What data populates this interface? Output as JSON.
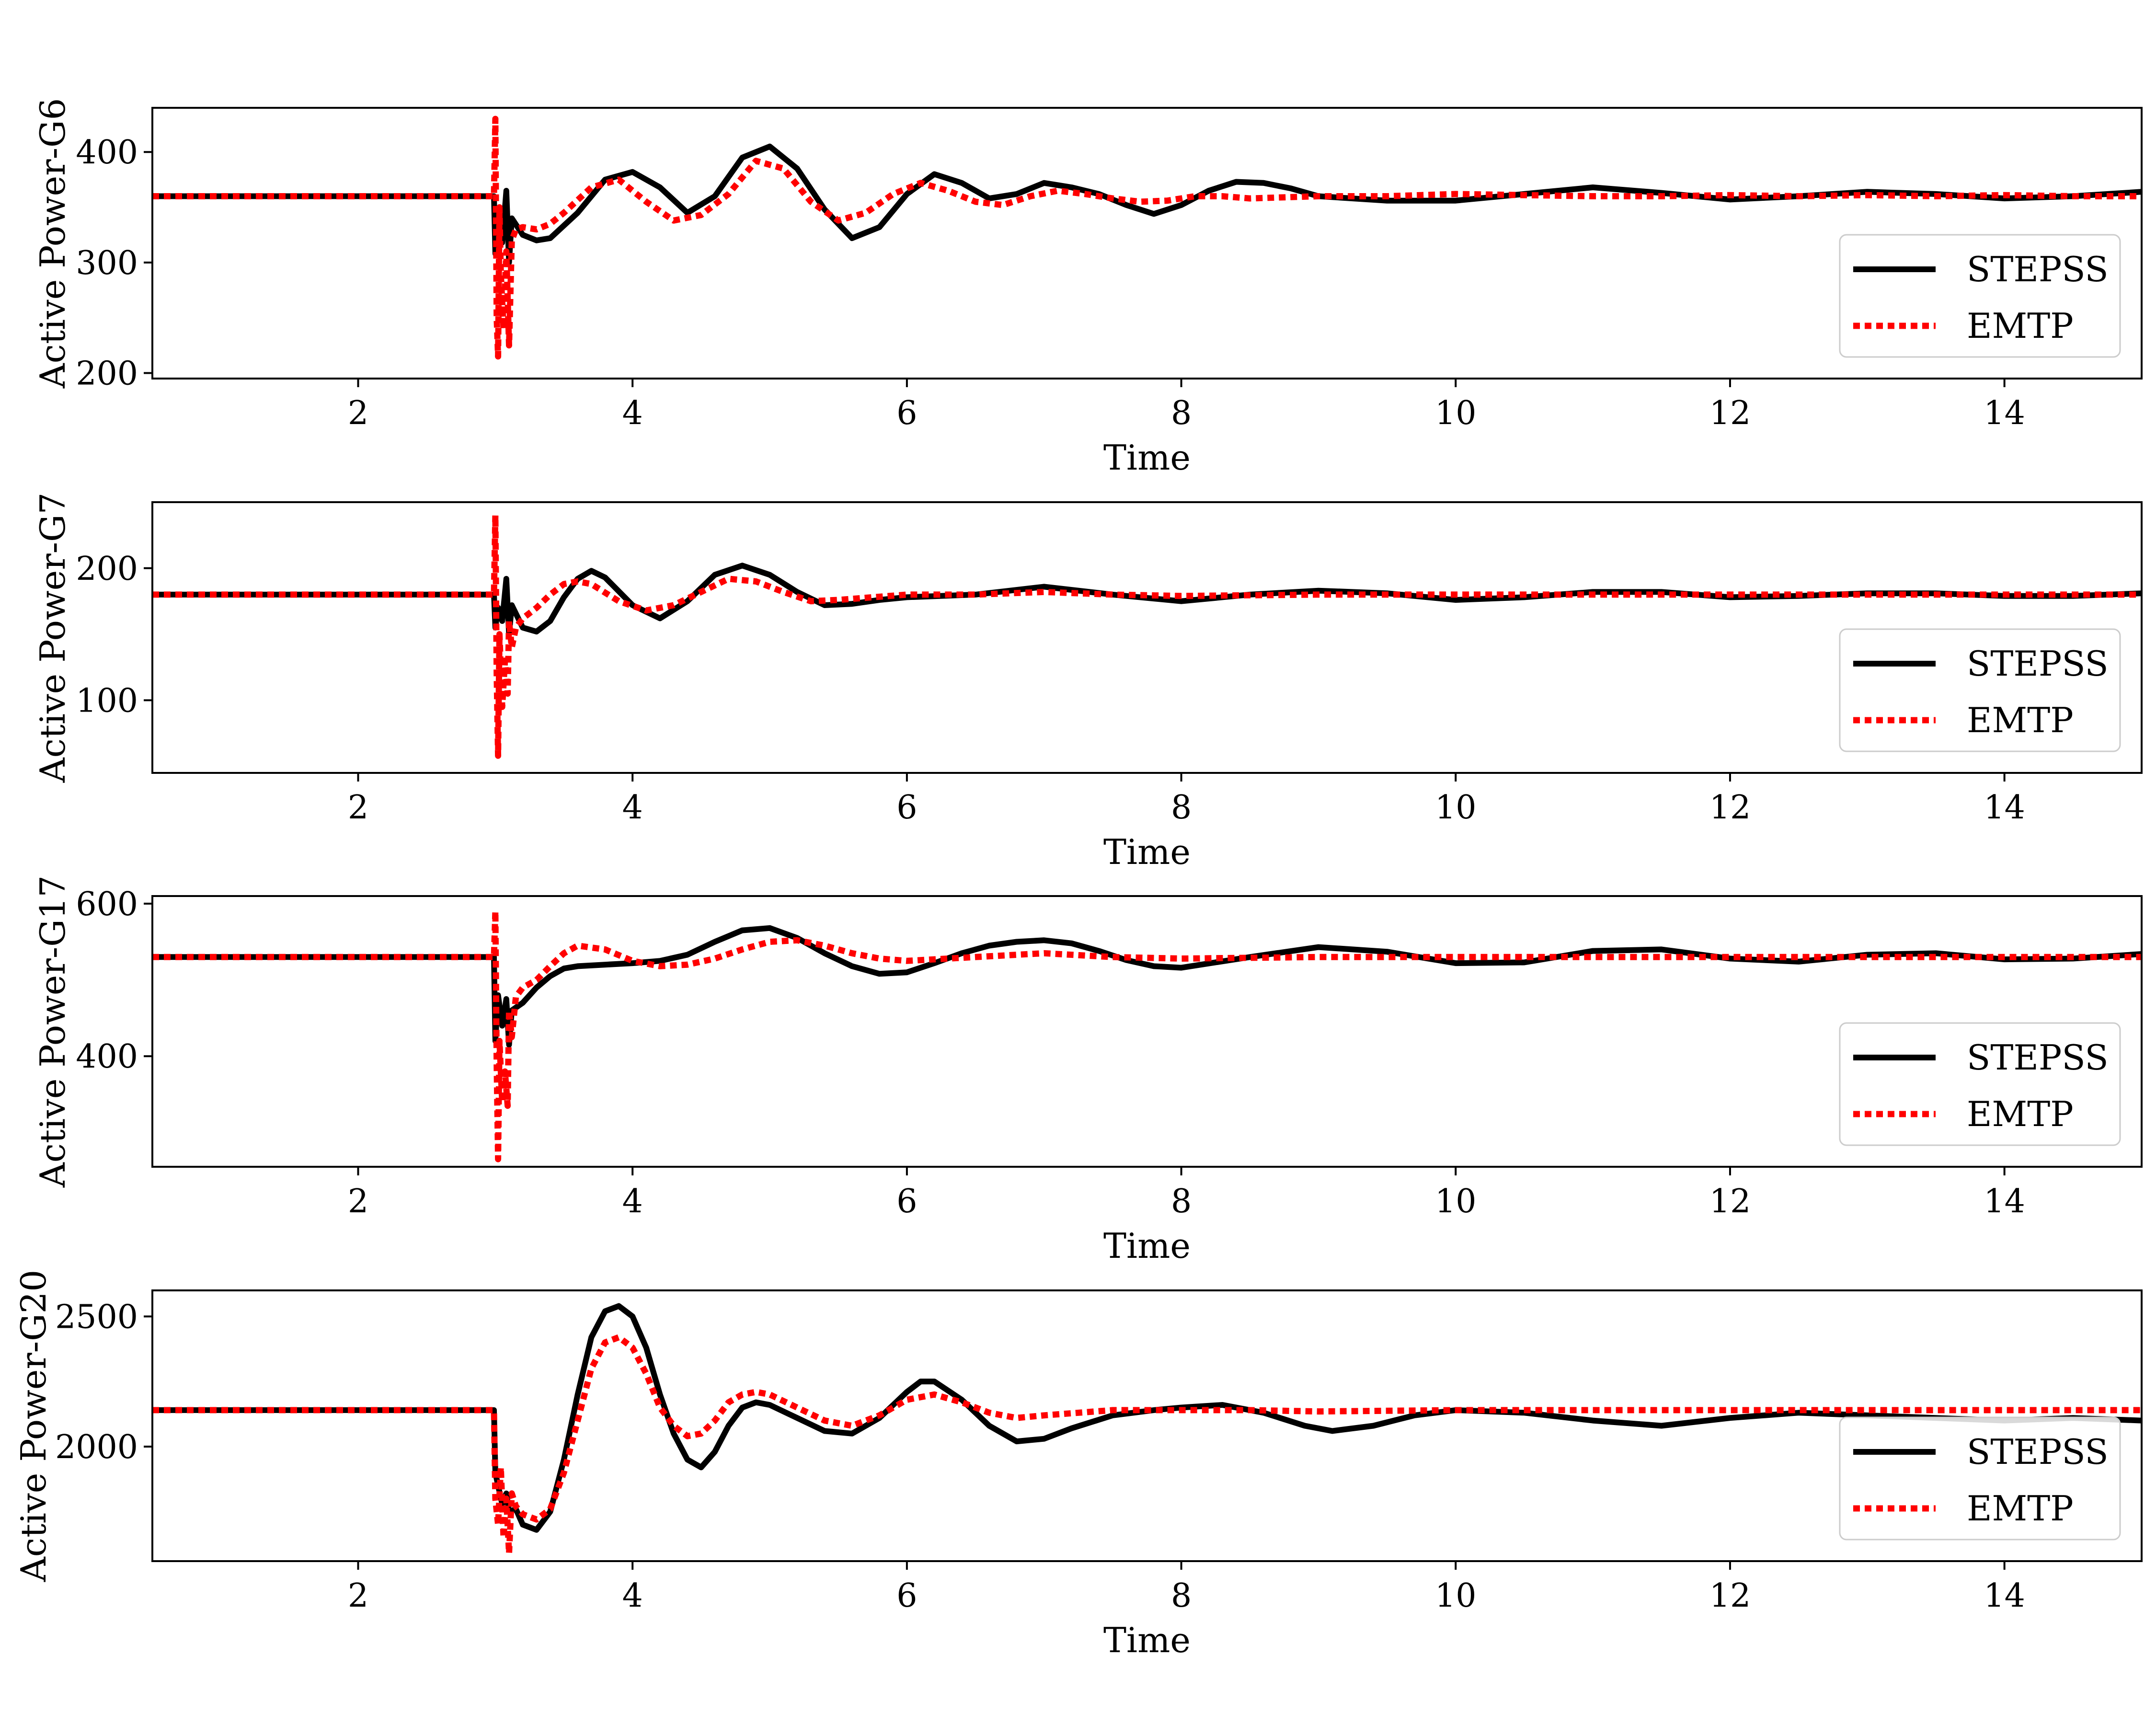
{
  "colors": {
    "stepss": "#000000",
    "emtp": "#ff0000",
    "background": "#ffffff",
    "legend_border": "#cccccc"
  },
  "chart_data": [
    {
      "type": "line",
      "xlabel": "Time",
      "ylabel": "Active Power-G6",
      "xlim": [
        0.5,
        15
      ],
      "ylim": [
        195,
        440
      ],
      "xticks": [
        2,
        4,
        6,
        8,
        10,
        12,
        14
      ],
      "xtick_labels": [
        "2",
        "4",
        "6",
        "8",
        "10",
        "12",
        "14"
      ],
      "yticks": [
        200,
        300,
        400
      ],
      "ytick_labels": [
        "200",
        "300",
        "400"
      ],
      "legend": {
        "position": "lower right",
        "entries": [
          "STEPSS",
          "EMTP"
        ]
      },
      "series": [
        {
          "name": "STEPSS",
          "style": "solid",
          "color": "#000000",
          "x": [
            0.5,
            2.99,
            3.0,
            3.02,
            3.05,
            3.08,
            3.1,
            3.12,
            3.2,
            3.3,
            3.4,
            3.6,
            3.8,
            4.0,
            4.2,
            4.4,
            4.6,
            4.8,
            5.0,
            5.2,
            5.4,
            5.6,
            5.8,
            6.0,
            6.2,
            6.4,
            6.6,
            6.8,
            7.0,
            7.2,
            7.4,
            7.6,
            7.8,
            8.0,
            8.2,
            8.4,
            8.6,
            8.8,
            9.0,
            9.5,
            10.0,
            10.5,
            11.0,
            11.5,
            12.0,
            12.5,
            13.0,
            13.5,
            14.0,
            14.5,
            15.0
          ],
          "y": [
            360,
            360,
            308,
            330,
            318,
            365,
            300,
            340,
            325,
            320,
            322,
            345,
            375,
            382,
            368,
            345,
            360,
            395,
            405,
            385,
            348,
            322,
            332,
            362,
            380,
            372,
            358,
            362,
            372,
            368,
            362,
            352,
            344,
            352,
            365,
            373,
            372,
            367,
            360,
            356,
            356,
            362,
            368,
            363,
            357,
            360,
            364,
            362,
            358,
            360,
            364
          ]
        },
        {
          "name": "EMTP",
          "style": "dotted",
          "color": "#ff0000",
          "x": [
            0.5,
            2.99,
            3.0,
            3.01,
            3.02,
            3.03,
            3.04,
            3.06,
            3.08,
            3.1,
            3.12,
            3.15,
            3.2,
            3.3,
            3.4,
            3.5,
            3.7,
            3.9,
            4.1,
            4.3,
            4.5,
            4.7,
            4.9,
            5.1,
            5.3,
            5.5,
            5.7,
            5.9,
            6.1,
            6.3,
            6.5,
            6.7,
            6.9,
            7.1,
            7.3,
            7.5,
            7.7,
            7.9,
            8.1,
            8.3,
            8.5,
            9.0,
            9.5,
            10.0,
            10.5,
            11.0,
            11.5,
            12.0,
            12.5,
            13.0,
            13.5,
            14.0,
            14.5,
            15.0
          ],
          "y": [
            360,
            360,
            430,
            250,
            215,
            350,
            290,
            240,
            310,
            225,
            320,
            330,
            332,
            330,
            335,
            345,
            368,
            375,
            355,
            338,
            343,
            362,
            392,
            385,
            355,
            338,
            345,
            362,
            372,
            365,
            355,
            352,
            360,
            365,
            362,
            358,
            355,
            356,
            360,
            360,
            358,
            360,
            360,
            362,
            361,
            360,
            360,
            361,
            360,
            361,
            360,
            361,
            360,
            360
          ]
        }
      ]
    },
    {
      "type": "line",
      "xlabel": "Time",
      "ylabel": "Active Power-G7",
      "xlim": [
        0.5,
        15
      ],
      "ylim": [
        45,
        250
      ],
      "xticks": [
        2,
        4,
        6,
        8,
        10,
        12,
        14
      ],
      "xtick_labels": [
        "2",
        "4",
        "6",
        "8",
        "10",
        "12",
        "14"
      ],
      "yticks": [
        100,
        200
      ],
      "ytick_labels": [
        "100",
        "200"
      ],
      "legend": {
        "position": "lower right",
        "entries": [
          "STEPSS",
          "EMTP"
        ]
      },
      "series": [
        {
          "name": "STEPSS",
          "style": "solid",
          "color": "#000000",
          "x": [
            0.5,
            2.99,
            3.0,
            3.02,
            3.05,
            3.08,
            3.1,
            3.12,
            3.2,
            3.3,
            3.4,
            3.5,
            3.6,
            3.7,
            3.8,
            4.0,
            4.2,
            4.4,
            4.6,
            4.8,
            5.0,
            5.2,
            5.4,
            5.6,
            5.8,
            6.0,
            6.5,
            7.0,
            7.5,
            8.0,
            8.5,
            9.0,
            9.5,
            10.0,
            10.5,
            11.0,
            11.5,
            12.0,
            12.5,
            13.0,
            13.5,
            14.0,
            14.5,
            15.0
          ],
          "y": [
            180,
            180,
            155,
            170,
            160,
            192,
            150,
            172,
            155,
            152,
            160,
            178,
            192,
            198,
            193,
            172,
            162,
            175,
            195,
            202,
            195,
            182,
            172,
            173,
            176,
            178,
            180,
            186,
            180,
            175,
            180,
            183,
            181,
            176,
            178,
            182,
            182,
            178,
            179,
            181,
            181,
            179,
            179,
            181
          ]
        },
        {
          "name": "EMTP",
          "style": "dotted",
          "color": "#ff0000",
          "x": [
            0.5,
            2.99,
            3.0,
            3.01,
            3.02,
            3.03,
            3.05,
            3.07,
            3.09,
            3.1,
            3.12,
            3.15,
            3.2,
            3.3,
            3.4,
            3.5,
            3.6,
            3.7,
            3.9,
            4.1,
            4.3,
            4.5,
            4.7,
            4.9,
            5.1,
            5.3,
            5.5,
            6.0,
            6.5,
            7.0,
            7.5,
            8.0,
            9.0,
            10.0,
            11.0,
            12.0,
            13.0,
            14.0,
            15.0
          ],
          "y": [
            180,
            180,
            240,
            120,
            58,
            150,
            95,
            130,
            105,
            160,
            140,
            155,
            162,
            170,
            180,
            188,
            190,
            188,
            175,
            168,
            172,
            182,
            192,
            190,
            182,
            175,
            176,
            180,
            180,
            182,
            180,
            179,
            180,
            180,
            180,
            180,
            180,
            180,
            180
          ]
        }
      ]
    },
    {
      "type": "line",
      "xlabel": "Time",
      "ylabel": "Active Power-G17",
      "xlim": [
        0.5,
        15
      ],
      "ylim": [
        255,
        610
      ],
      "xticks": [
        2,
        4,
        6,
        8,
        10,
        12,
        14
      ],
      "xtick_labels": [
        "2",
        "4",
        "6",
        "8",
        "10",
        "12",
        "14"
      ],
      "yticks": [
        400,
        600
      ],
      "ytick_labels": [
        "400",
        "600"
      ],
      "legend": {
        "position": "lower right",
        "entries": [
          "STEPSS",
          "EMTP"
        ]
      },
      "series": [
        {
          "name": "STEPSS",
          "style": "solid",
          "color": "#000000",
          "x": [
            0.5,
            2.99,
            3.0,
            3.02,
            3.05,
            3.08,
            3.1,
            3.12,
            3.2,
            3.3,
            3.4,
            3.5,
            3.6,
            3.8,
            4.0,
            4.2,
            4.4,
            4.6,
            4.8,
            5.0,
            5.2,
            5.4,
            5.6,
            5.8,
            6.0,
            6.2,
            6.4,
            6.6,
            6.8,
            7.0,
            7.2,
            7.4,
            7.6,
            7.8,
            8.0,
            8.5,
            9.0,
            9.5,
            10.0,
            10.5,
            11.0,
            11.5,
            12.0,
            12.5,
            13.0,
            13.5,
            14.0,
            14.5,
            15.0
          ],
          "y": [
            530,
            530,
            420,
            480,
            440,
            475,
            415,
            460,
            470,
            490,
            505,
            515,
            518,
            520,
            522,
            525,
            533,
            550,
            565,
            568,
            555,
            535,
            518,
            508,
            510,
            522,
            535,
            545,
            550,
            552,
            548,
            538,
            526,
            518,
            516,
            530,
            543,
            537,
            522,
            523,
            538,
            540,
            528,
            524,
            533,
            535,
            527,
            528,
            534
          ]
        },
        {
          "name": "EMTP",
          "style": "dotted",
          "color": "#ff0000",
          "x": [
            0.5,
            2.99,
            3.0,
            3.01,
            3.02,
            3.03,
            3.05,
            3.07,
            3.09,
            3.1,
            3.12,
            3.15,
            3.2,
            3.3,
            3.4,
            3.5,
            3.6,
            3.8,
            4.0,
            4.2,
            4.4,
            4.6,
            4.8,
            5.0,
            5.2,
            5.4,
            5.6,
            5.8,
            6.0,
            6.5,
            7.0,
            7.5,
            8.0,
            9.0,
            10.0,
            11.0,
            12.0,
            13.0,
            14.0,
            15.0
          ],
          "y": [
            530,
            530,
            590,
            390,
            265,
            420,
            340,
            380,
            335,
            460,
            425,
            478,
            490,
            500,
            518,
            535,
            545,
            540,
            525,
            518,
            520,
            528,
            540,
            550,
            552,
            545,
            535,
            528,
            525,
            530,
            535,
            530,
            528,
            530,
            530,
            530,
            530,
            530,
            530,
            530
          ]
        }
      ]
    },
    {
      "type": "line",
      "xlabel": "Time",
      "ylabel": "Active Power-G20",
      "xlim": [
        0.5,
        15
      ],
      "ylim": [
        1560,
        2600
      ],
      "xticks": [
        2,
        4,
        6,
        8,
        10,
        12,
        14
      ],
      "xtick_labels": [
        "2",
        "4",
        "6",
        "8",
        "10",
        "12",
        "14"
      ],
      "yticks": [
        2000,
        2500
      ],
      "ytick_labels": [
        "2000",
        "2500"
      ],
      "legend": {
        "position": "lower right",
        "entries": [
          "STEPSS",
          "EMTP"
        ]
      },
      "series": [
        {
          "name": "STEPSS",
          "style": "solid",
          "color": "#000000",
          "x": [
            0.5,
            2.99,
            3.0,
            3.02,
            3.05,
            3.08,
            3.1,
            3.15,
            3.2,
            3.3,
            3.4,
            3.5,
            3.6,
            3.7,
            3.8,
            3.9,
            4.0,
            4.1,
            4.2,
            4.3,
            4.4,
            4.5,
            4.6,
            4.7,
            4.8,
            4.9,
            5.0,
            5.2,
            5.4,
            5.6,
            5.8,
            6.0,
            6.1,
            6.2,
            6.4,
            6.6,
            6.8,
            7.0,
            7.2,
            7.5,
            7.8,
            8.0,
            8.3,
            8.6,
            8.9,
            9.1,
            9.4,
            9.7,
            10.0,
            10.5,
            11.0,
            11.5,
            12.0,
            12.5,
            13.0,
            13.5,
            14.0,
            14.5,
            15.0
          ],
          "y": [
            2140,
            2140,
            1900,
            1850,
            1780,
            1820,
            1750,
            1760,
            1700,
            1680,
            1750,
            1950,
            2200,
            2420,
            2520,
            2540,
            2500,
            2380,
            2200,
            2050,
            1950,
            1920,
            1980,
            2080,
            2150,
            2170,
            2160,
            2110,
            2060,
            2050,
            2110,
            2210,
            2250,
            2250,
            2180,
            2080,
            2020,
            2030,
            2070,
            2120,
            2140,
            2150,
            2160,
            2130,
            2080,
            2060,
            2080,
            2120,
            2140,
            2130,
            2100,
            2080,
            2110,
            2130,
            2120,
            2110,
            2100,
            2110,
            2100
          ]
        },
        {
          "name": "EMTP",
          "style": "dotted",
          "color": "#ff0000",
          "x": [
            0.5,
            2.99,
            3.0,
            3.02,
            3.04,
            3.06,
            3.08,
            3.1,
            3.12,
            3.15,
            3.2,
            3.3,
            3.4,
            3.5,
            3.6,
            3.7,
            3.8,
            3.9,
            4.0,
            4.1,
            4.2,
            4.3,
            4.4,
            4.5,
            4.6,
            4.7,
            4.8,
            4.9,
            5.0,
            5.2,
            5.4,
            5.6,
            5.8,
            6.0,
            6.2,
            6.4,
            6.6,
            6.8,
            7.0,
            7.5,
            8.0,
            8.5,
            9.0,
            10.0,
            11.0,
            12.0,
            13.0,
            14.0,
            15.0
          ],
          "y": [
            2140,
            2140,
            1800,
            1700,
            1920,
            1650,
            1800,
            1590,
            1820,
            1770,
            1740,
            1720,
            1760,
            1900,
            2100,
            2300,
            2400,
            2420,
            2380,
            2280,
            2150,
            2080,
            2040,
            2050,
            2100,
            2170,
            2200,
            2210,
            2200,
            2150,
            2100,
            2080,
            2120,
            2180,
            2200,
            2170,
            2130,
            2110,
            2120,
            2140,
            2140,
            2140,
            2135,
            2140,
            2140,
            2140,
            2140,
            2140,
            2140
          ]
        }
      ]
    }
  ]
}
